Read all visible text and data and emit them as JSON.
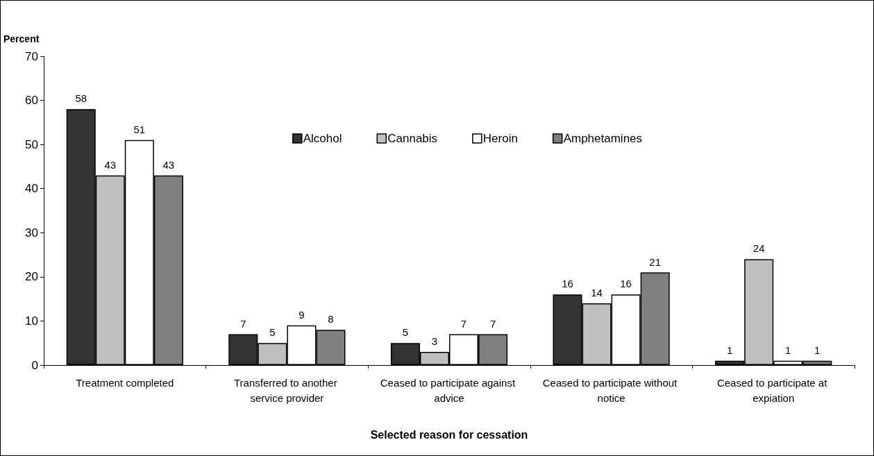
{
  "chart_data": {
    "type": "bar",
    "ylabel": "Percent",
    "xlabel": "Selected reason for cessation",
    "categories": [
      "Treatment completed",
      "Transferred to another service provider",
      "Ceased to participate against advice",
      "Ceased to participate without notice",
      "Ceased to participate at expiation"
    ],
    "series": [
      {
        "name": "Alcohol",
        "color": "#333333",
        "values": [
          58,
          7,
          5,
          16,
          1
        ]
      },
      {
        "name": "Cannabis",
        "color": "#c0c0c0",
        "values": [
          43,
          5,
          3,
          14,
          24
        ]
      },
      {
        "name": "Heroin",
        "color": "#ffffff",
        "values": [
          51,
          9,
          7,
          16,
          1
        ]
      },
      {
        "name": "Amphetamines",
        "color": "#808080",
        "values": [
          43,
          8,
          7,
          21,
          1
        ]
      }
    ],
    "ylim": [
      0,
      70
    ],
    "yticks": [
      0,
      10,
      20,
      30,
      40,
      50,
      60,
      70
    ],
    "grid": false,
    "legend": "top",
    "data_labels": true
  }
}
